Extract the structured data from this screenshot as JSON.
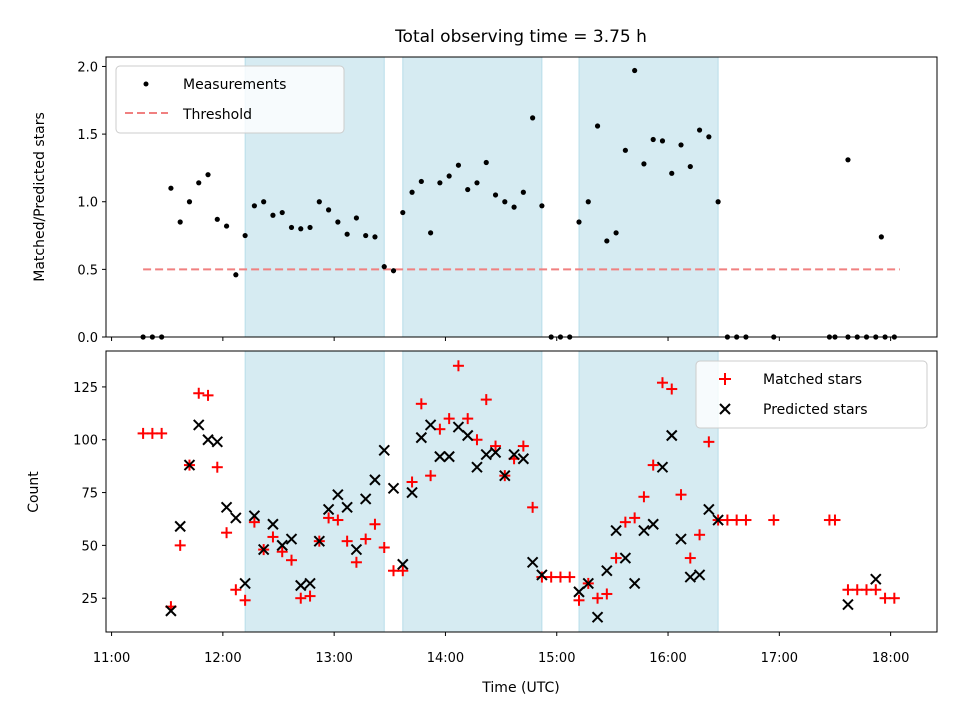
{
  "figure": {
    "title": "Total observing time = 3.75 h",
    "xlabel": "Time (UTC)"
  },
  "chart_data": [
    {
      "type": "scatter",
      "ylabel": "Matched/Predicted stars",
      "xlim": [
        "10:57",
        "18:25"
      ],
      "ylim": [
        0,
        2.07
      ],
      "xticks": [
        "11:00",
        "12:00",
        "13:00",
        "14:00",
        "15:00",
        "16:00",
        "17:00",
        "18:00"
      ],
      "yticks": [
        "0.0",
        "0.5",
        "1.0",
        "1.5",
        "2.0"
      ],
      "legend": {
        "placement": "top-left",
        "entries": [
          "Measurements",
          "Threshold"
        ]
      },
      "shaded_intervals": [
        [
          "12:12",
          "13:27"
        ],
        [
          "13:37",
          "14:52"
        ],
        [
          "15:12",
          "16:27"
        ]
      ],
      "threshold": {
        "name": "Threshold",
        "value": 0.5,
        "x_start": "11:17",
        "x_end": "18:05",
        "color": "#f08080"
      },
      "series": [
        {
          "name": "Measurements",
          "color": "#000000",
          "points": [
            [
              "11:17",
              0
            ],
            [
              "11:22",
              0
            ],
            [
              "11:27",
              0
            ],
            [
              "11:32",
              1.1
            ],
            [
              "11:37",
              0.85
            ],
            [
              "11:42",
              1.0
            ],
            [
              "11:47",
              1.14
            ],
            [
              "11:52",
              1.2
            ],
            [
              "11:57",
              0.87
            ],
            [
              "12:02",
              0.82
            ],
            [
              "12:07",
              0.46
            ],
            [
              "12:12",
              0.75
            ],
            [
              "12:17",
              0.97
            ],
            [
              "12:22",
              1.0
            ],
            [
              "12:27",
              0.9
            ],
            [
              "12:32",
              0.92
            ],
            [
              "12:37",
              0.81
            ],
            [
              "12:42",
              0.8
            ],
            [
              "12:47",
              0.81
            ],
            [
              "12:52",
              1.0
            ],
            [
              "12:57",
              0.94
            ],
            [
              "13:02",
              0.85
            ],
            [
              "13:07",
              0.76
            ],
            [
              "13:12",
              0.88
            ],
            [
              "13:17",
              0.75
            ],
            [
              "13:22",
              0.74
            ],
            [
              "13:27",
              0.52
            ],
            [
              "13:32",
              0.49
            ],
            [
              "13:37",
              0.92
            ],
            [
              "13:42",
              1.07
            ],
            [
              "13:47",
              1.15
            ],
            [
              "13:52",
              0.77
            ],
            [
              "13:57",
              1.14
            ],
            [
              "14:02",
              1.19
            ],
            [
              "14:07",
              1.27
            ],
            [
              "14:12",
              1.09
            ],
            [
              "14:17",
              1.14
            ],
            [
              "14:22",
              1.29
            ],
            [
              "14:27",
              1.05
            ],
            [
              "14:32",
              1.0
            ],
            [
              "14:37",
              0.96
            ],
            [
              "14:42",
              1.07
            ],
            [
              "14:47",
              1.62
            ],
            [
              "14:52",
              0.97
            ],
            [
              "14:57",
              0
            ],
            [
              "15:02",
              0
            ],
            [
              "15:07",
              0
            ],
            [
              "15:12",
              0.85
            ],
            [
              "15:17",
              1.0
            ],
            [
              "15:22",
              1.56
            ],
            [
              "15:27",
              0.71
            ],
            [
              "15:32",
              0.77
            ],
            [
              "15:37",
              1.38
            ],
            [
              "15:42",
              1.97
            ],
            [
              "15:47",
              1.28
            ],
            [
              "15:52",
              1.46
            ],
            [
              "15:57",
              1.45
            ],
            [
              "16:02",
              1.21
            ],
            [
              "16:07",
              1.42
            ],
            [
              "16:12",
              1.26
            ],
            [
              "16:17",
              1.53
            ],
            [
              "16:22",
              1.48
            ],
            [
              "16:27",
              1.0
            ],
            [
              "16:32",
              0
            ],
            [
              "16:37",
              0
            ],
            [
              "16:42",
              0
            ],
            [
              "16:57",
              0
            ],
            [
              "17:27",
              0
            ],
            [
              "17:30",
              0
            ],
            [
              "17:37",
              0
            ],
            [
              "17:42",
              0
            ],
            [
              "17:47",
              0
            ],
            [
              "17:52",
              0
            ],
            [
              "17:55",
              0.74
            ],
            [
              "17:57",
              0
            ],
            [
              "18:02",
              0
            ],
            [
              "17:37",
              1.31
            ]
          ]
        }
      ]
    },
    {
      "type": "scatter",
      "ylabel": "Count",
      "xlim": [
        "10:57",
        "18:25"
      ],
      "ylim": [
        9,
        142
      ],
      "xticks": [
        "11:00",
        "12:00",
        "13:00",
        "14:00",
        "15:00",
        "16:00",
        "17:00",
        "18:00"
      ],
      "yticks": [
        "25",
        "50",
        "75",
        "100",
        "125"
      ],
      "legend": {
        "placement": "top-right",
        "entries": [
          "Matched stars",
          "Predicted stars"
        ]
      },
      "shaded_intervals": [
        [
          "12:12",
          "13:27"
        ],
        [
          "13:37",
          "14:52"
        ],
        [
          "15:12",
          "16:27"
        ]
      ],
      "series": [
        {
          "name": "Matched stars",
          "marker": "plus",
          "color": "#ff0000",
          "points": [
            [
              "11:17",
              103
            ],
            [
              "11:22",
              103
            ],
            [
              "11:27",
              103
            ],
            [
              "11:32",
              21
            ],
            [
              "11:37",
              50
            ],
            [
              "11:42",
              88
            ],
            [
              "11:47",
              122
            ],
            [
              "11:52",
              121
            ],
            [
              "11:57",
              87
            ],
            [
              "12:02",
              56
            ],
            [
              "12:07",
              29
            ],
            [
              "12:12",
              24
            ],
            [
              "12:17",
              61
            ],
            [
              "12:22",
              48
            ],
            [
              "12:27",
              54
            ],
            [
              "12:32",
              47
            ],
            [
              "12:37",
              43
            ],
            [
              "12:42",
              25
            ],
            [
              "12:47",
              26
            ],
            [
              "12:52",
              52
            ],
            [
              "12:57",
              63
            ],
            [
              "13:02",
              62
            ],
            [
              "13:07",
              52
            ],
            [
              "13:12",
              42
            ],
            [
              "13:17",
              53
            ],
            [
              "13:22",
              60
            ],
            [
              "13:27",
              49
            ],
            [
              "13:32",
              38
            ],
            [
              "13:37",
              38
            ],
            [
              "13:42",
              80
            ],
            [
              "13:47",
              117
            ],
            [
              "13:52",
              83
            ],
            [
              "13:57",
              105
            ],
            [
              "14:02",
              110
            ],
            [
              "14:07",
              135
            ],
            [
              "14:12",
              110
            ],
            [
              "14:17",
              100
            ],
            [
              "14:22",
              119
            ],
            [
              "14:27",
              97
            ],
            [
              "14:32",
              83
            ],
            [
              "14:37",
              91
            ],
            [
              "14:42",
              97
            ],
            [
              "14:47",
              68
            ],
            [
              "14:52",
              35
            ],
            [
              "14:57",
              35
            ],
            [
              "15:02",
              35
            ],
            [
              "15:07",
              35
            ],
            [
              "15:12",
              24
            ],
            [
              "15:17",
              32
            ],
            [
              "15:22",
              25
            ],
            [
              "15:27",
              27
            ],
            [
              "15:32",
              44
            ],
            [
              "15:37",
              61
            ],
            [
              "15:42",
              63
            ],
            [
              "15:47",
              73
            ],
            [
              "15:52",
              88
            ],
            [
              "15:57",
              127
            ],
            [
              "16:02",
              124
            ],
            [
              "16:07",
              74
            ],
            [
              "16:12",
              44
            ],
            [
              "16:17",
              55
            ],
            [
              "16:22",
              99
            ],
            [
              "16:27",
              62
            ],
            [
              "16:32",
              62
            ],
            [
              "16:37",
              62
            ],
            [
              "16:42",
              62
            ],
            [
              "16:57",
              62
            ],
            [
              "17:27",
              62
            ],
            [
              "17:30",
              62
            ],
            [
              "17:37",
              29
            ],
            [
              "17:42",
              29
            ],
            [
              "17:47",
              29
            ],
            [
              "17:52",
              29
            ],
            [
              "17:57",
              25
            ],
            [
              "18:02",
              25
            ]
          ]
        },
        {
          "name": "Predicted stars",
          "marker": "x",
          "color": "#000000",
          "points": [
            [
              "11:32",
              19
            ],
            [
              "11:37",
              59
            ],
            [
              "11:42",
              88
            ],
            [
              "11:47",
              107
            ],
            [
              "11:52",
              100
            ],
            [
              "11:57",
              99
            ],
            [
              "12:02",
              68
            ],
            [
              "12:07",
              63
            ],
            [
              "12:12",
              32
            ],
            [
              "12:17",
              64
            ],
            [
              "12:22",
              48
            ],
            [
              "12:27",
              60
            ],
            [
              "12:32",
              50
            ],
            [
              "12:37",
              53
            ],
            [
              "12:42",
              31
            ],
            [
              "12:47",
              32
            ],
            [
              "12:52",
              52
            ],
            [
              "12:57",
              67
            ],
            [
              "13:02",
              74
            ],
            [
              "13:07",
              68
            ],
            [
              "13:12",
              48
            ],
            [
              "13:17",
              72
            ],
            [
              "13:22",
              81
            ],
            [
              "13:27",
              95
            ],
            [
              "13:32",
              77
            ],
            [
              "13:37",
              41
            ],
            [
              "13:42",
              75
            ],
            [
              "13:47",
              101
            ],
            [
              "13:52",
              107
            ],
            [
              "13:57",
              92
            ],
            [
              "14:02",
              92
            ],
            [
              "14:07",
              106
            ],
            [
              "14:12",
              102
            ],
            [
              "14:17",
              87
            ],
            [
              "14:22",
              93
            ],
            [
              "14:27",
              94
            ],
            [
              "14:32",
              83
            ],
            [
              "14:37",
              93
            ],
            [
              "14:42",
              91
            ],
            [
              "14:47",
              42
            ],
            [
              "14:52",
              36
            ],
            [
              "15:12",
              28
            ],
            [
              "15:17",
              32
            ],
            [
              "15:22",
              16
            ],
            [
              "15:27",
              38
            ],
            [
              "15:32",
              57
            ],
            [
              "15:37",
              44
            ],
            [
              "15:42",
              32
            ],
            [
              "15:47",
              57
            ],
            [
              "15:52",
              60
            ],
            [
              "15:57",
              87
            ],
            [
              "16:02",
              102
            ],
            [
              "16:07",
              53
            ],
            [
              "16:12",
              35
            ],
            [
              "16:17",
              36
            ],
            [
              "16:22",
              67
            ],
            [
              "16:27",
              62
            ],
            [
              "17:37",
              22
            ],
            [
              "17:52",
              34
            ]
          ]
        }
      ]
    }
  ]
}
